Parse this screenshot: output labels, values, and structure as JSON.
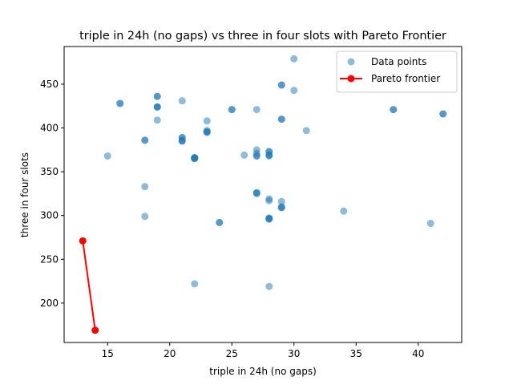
{
  "chart_data": {
    "type": "scatter",
    "title": "triple in 24h (no gaps) vs three in four slots with Pareto Frontier",
    "xlabel": "triple in 24h (no gaps)",
    "ylabel": "three in four slots",
    "xlim": [
      11.5,
      43.5
    ],
    "ylim": [
      155,
      493
    ],
    "x_ticks": [
      15,
      20,
      25,
      30,
      35,
      40
    ],
    "y_ticks": [
      200,
      250,
      300,
      350,
      400,
      450
    ],
    "grid": false,
    "legend_placement": "top-right",
    "colors": {
      "points": "#1f77b4",
      "frontier": "#ff0000"
    },
    "series": [
      {
        "name": "Data points",
        "kind": "scatter",
        "points": [
          [
            15,
            368
          ],
          [
            16,
            428
          ],
          [
            16,
            428
          ],
          [
            18,
            386
          ],
          [
            18,
            386
          ],
          [
            18,
            333
          ],
          [
            18,
            299
          ],
          [
            19,
            436
          ],
          [
            19,
            436
          ],
          [
            19,
            424
          ],
          [
            19,
            424
          ],
          [
            19,
            424
          ],
          [
            19,
            409
          ],
          [
            21,
            431
          ],
          [
            21,
            389
          ],
          [
            21,
            389
          ],
          [
            21,
            386
          ],
          [
            21,
            385
          ],
          [
            21,
            385
          ],
          [
            22,
            366
          ],
          [
            22,
            366
          ],
          [
            22,
            366
          ],
          [
            22,
            365
          ],
          [
            22,
            365
          ],
          [
            22,
            222
          ],
          [
            23,
            408
          ],
          [
            23,
            397
          ],
          [
            23,
            396
          ],
          [
            23,
            395
          ],
          [
            23,
            395
          ],
          [
            24,
            292
          ],
          [
            24,
            292
          ],
          [
            25,
            421
          ],
          [
            25,
            421
          ],
          [
            26,
            369
          ],
          [
            27,
            421
          ],
          [
            27,
            375
          ],
          [
            27,
            371
          ],
          [
            27,
            368
          ],
          [
            27,
            368
          ],
          [
            27,
            326
          ],
          [
            27,
            326
          ],
          [
            27,
            325
          ],
          [
            28,
            373
          ],
          [
            28,
            373
          ],
          [
            28,
            369
          ],
          [
            28,
            369
          ],
          [
            28,
            368
          ],
          [
            28,
            319
          ],
          [
            28,
            317
          ],
          [
            28,
            297
          ],
          [
            28,
            297
          ],
          [
            28,
            296
          ],
          [
            28,
            296
          ],
          [
            28,
            219
          ],
          [
            29,
            449
          ],
          [
            29,
            449
          ],
          [
            29,
            410
          ],
          [
            29,
            410
          ],
          [
            29,
            316
          ],
          [
            29,
            310
          ],
          [
            29,
            309
          ],
          [
            29,
            309
          ],
          [
            30,
            479
          ],
          [
            30,
            443
          ],
          [
            31,
            397
          ],
          [
            34,
            305
          ],
          [
            38,
            421
          ],
          [
            38,
            421
          ],
          [
            41,
            291
          ],
          [
            42,
            416
          ],
          [
            42,
            416
          ]
        ]
      },
      {
        "name": "Pareto frontier",
        "kind": "line",
        "points": [
          [
            13,
            271
          ],
          [
            14,
            169
          ]
        ]
      }
    ]
  }
}
